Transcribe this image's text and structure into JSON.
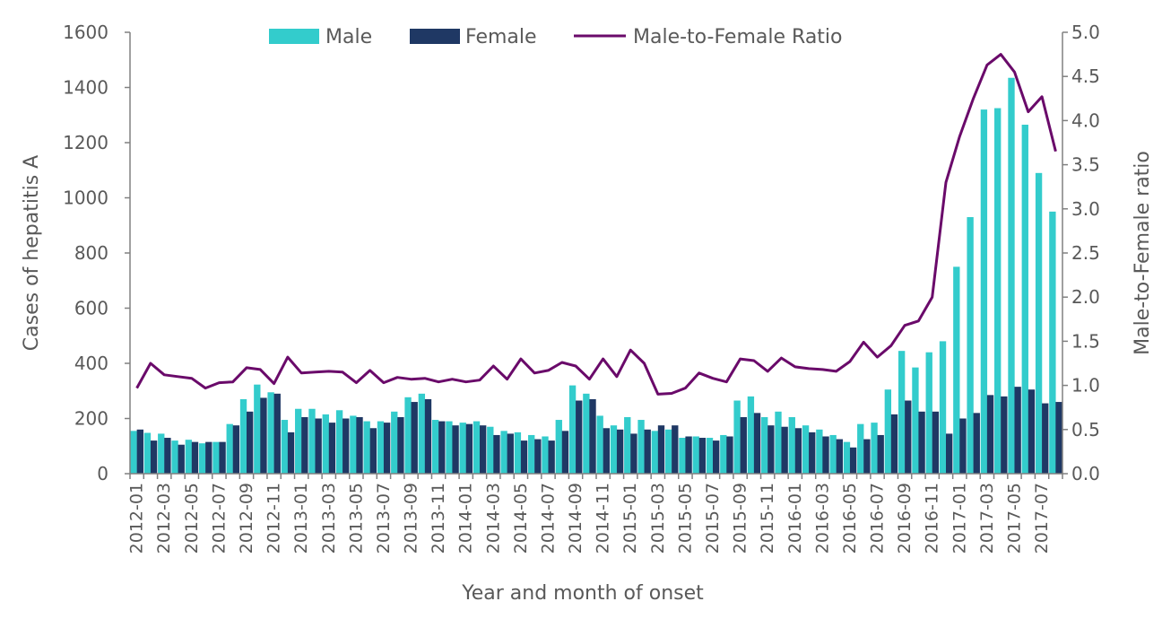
{
  "chart_data": {
    "type": "bar+line",
    "xlabel": "Year and month of onset",
    "ylabel": "Cases of hepatitis A",
    "y2label": "Male-to-Female ratio",
    "ylim": [
      0,
      1600
    ],
    "y_ticks": [
      0,
      200,
      400,
      600,
      800,
      1000,
      1200,
      1400,
      1600
    ],
    "y2lim": [
      0,
      5.0
    ],
    "y2_ticks": [
      "0.0",
      "0.5",
      "1.0",
      "1.5",
      "2.0",
      "2.5",
      "3.0",
      "3.5",
      "4.0",
      "4.5",
      "5.0"
    ],
    "grid": false,
    "legend_position": "top",
    "colors": {
      "male": "#33CCCC",
      "female": "#1F3864",
      "ratio": "#6A0A6A",
      "axis": "#808080"
    },
    "categories": [
      "2012-01",
      "2012-02",
      "2012-03",
      "2012-04",
      "2012-05",
      "2012-06",
      "2012-07",
      "2012-08",
      "2012-09",
      "2012-10",
      "2012-11",
      "2012-12",
      "2013-01",
      "2013-02",
      "2013-03",
      "2013-04",
      "2013-05",
      "2013-06",
      "2013-07",
      "2013-08",
      "2013-09",
      "2013-10",
      "2013-11",
      "2013-12",
      "2014-01",
      "2014-02",
      "2014-03",
      "2014-04",
      "2014-05",
      "2014-06",
      "2014-07",
      "2014-08",
      "2014-09",
      "2014-10",
      "2014-11",
      "2014-12",
      "2015-01",
      "2015-02",
      "2015-03",
      "2015-04",
      "2015-05",
      "2015-06",
      "2015-07",
      "2015-08",
      "2015-09",
      "2015-10",
      "2015-11",
      "2015-12",
      "2016-01",
      "2016-02",
      "2016-03",
      "2016-04",
      "2016-05",
      "2016-06",
      "2016-07",
      "2016-08",
      "2016-09",
      "2016-10",
      "2016-11",
      "2016-12",
      "2017-01",
      "2017-02",
      "2017-03",
      "2017-04",
      "2017-05",
      "2017-06",
      "2017-07",
      "2017-08"
    ],
    "series": [
      {
        "name": "Male",
        "type": "bar",
        "axis": "left",
        "values": [
          155,
          148,
          145,
          120,
          123,
          110,
          115,
          180,
          270,
          323,
          295,
          195,
          235,
          235,
          215,
          230,
          210,
          190,
          190,
          225,
          277,
          290,
          195,
          190,
          185,
          190,
          170,
          155,
          150,
          140,
          135,
          195,
          320,
          290,
          210,
          175,
          205,
          195,
          155,
          160,
          130,
          135,
          130,
          140,
          265,
          280,
          205,
          225,
          205,
          175,
          160,
          140,
          115,
          180,
          185,
          305,
          445,
          385,
          440,
          480,
          750,
          930,
          1320,
          1325,
          1435,
          1265,
          1090,
          950
        ]
      },
      {
        "name": "Female",
        "type": "bar",
        "axis": "left",
        "values": [
          160,
          120,
          130,
          105,
          115,
          115,
          115,
          175,
          225,
          275,
          290,
          150,
          205,
          200,
          185,
          200,
          205,
          165,
          185,
          205,
          260,
          270,
          190,
          175,
          180,
          175,
          140,
          145,
          120,
          125,
          120,
          155,
          265,
          270,
          165,
          160,
          145,
          160,
          175,
          175,
          135,
          130,
          120,
          135,
          205,
          220,
          175,
          170,
          165,
          150,
          135,
          125,
          95,
          125,
          140,
          215,
          265,
          225,
          225,
          145,
          200,
          220,
          285,
          280,
          315,
          305,
          255,
          260
        ]
      },
      {
        "name": "Male-to-Female Ratio",
        "type": "line",
        "axis": "right",
        "values": [
          0.97,
          1.25,
          1.12,
          1.1,
          1.08,
          0.97,
          1.03,
          1.04,
          1.2,
          1.18,
          1.02,
          1.32,
          1.14,
          1.15,
          1.16,
          1.15,
          1.03,
          1.17,
          1.03,
          1.09,
          1.07,
          1.08,
          1.04,
          1.07,
          1.04,
          1.06,
          1.22,
          1.07,
          1.3,
          1.14,
          1.17,
          1.26,
          1.22,
          1.07,
          1.3,
          1.1,
          1.4,
          1.25,
          0.9,
          0.91,
          0.97,
          1.14,
          1.08,
          1.04,
          1.3,
          1.28,
          1.16,
          1.31,
          1.21,
          1.19,
          1.18,
          1.16,
          1.27,
          1.49,
          1.32,
          1.45,
          1.68,
          1.73,
          2.0,
          3.3,
          3.82,
          4.25,
          4.63,
          4.75,
          4.55,
          4.1,
          4.27,
          3.65
        ]
      }
    ]
  }
}
